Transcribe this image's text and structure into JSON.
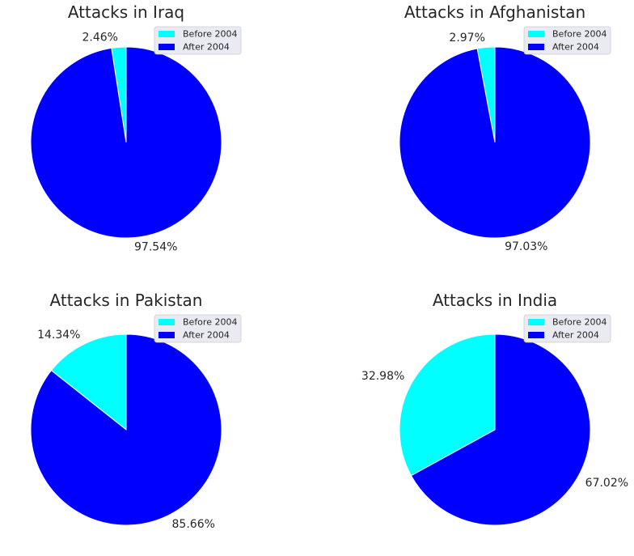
{
  "chart_data": [
    {
      "type": "pie",
      "title": "Attacks in Iraq",
      "labels": [
        "Before 2004",
        "After 2004"
      ],
      "values": [
        2.46,
        97.54
      ],
      "value_labels": [
        "2.46%",
        "97.54%"
      ],
      "colors": [
        "#00ffff",
        "#0000ff"
      ],
      "legend": "top-right",
      "start_angle": 90,
      "direction": "counterclockwise"
    },
    {
      "type": "pie",
      "title": "Attacks in Afghanistan",
      "labels": [
        "Before 2004",
        "After 2004"
      ],
      "values": [
        2.97,
        97.03
      ],
      "value_labels": [
        "2.97%",
        "97.03%"
      ],
      "colors": [
        "#00ffff",
        "#0000ff"
      ],
      "legend": "top-right",
      "start_angle": 90,
      "direction": "counterclockwise"
    },
    {
      "type": "pie",
      "title": "Attacks in Pakistan",
      "labels": [
        "Before 2004",
        "After 2004"
      ],
      "values": [
        14.34,
        85.66
      ],
      "value_labels": [
        "14.34%",
        "85.66%"
      ],
      "colors": [
        "#00ffff",
        "#0000ff"
      ],
      "legend": "top-right",
      "start_angle": 90,
      "direction": "counterclockwise"
    },
    {
      "type": "pie",
      "title": "Attacks in India",
      "labels": [
        "Before 2004",
        "After 2004"
      ],
      "values": [
        32.98,
        67.02
      ],
      "value_labels": [
        "32.98%",
        "67.02%"
      ],
      "colors": [
        "#00ffff",
        "#0000ff"
      ],
      "legend": "top-right",
      "start_angle": 90,
      "direction": "counterclockwise"
    }
  ]
}
